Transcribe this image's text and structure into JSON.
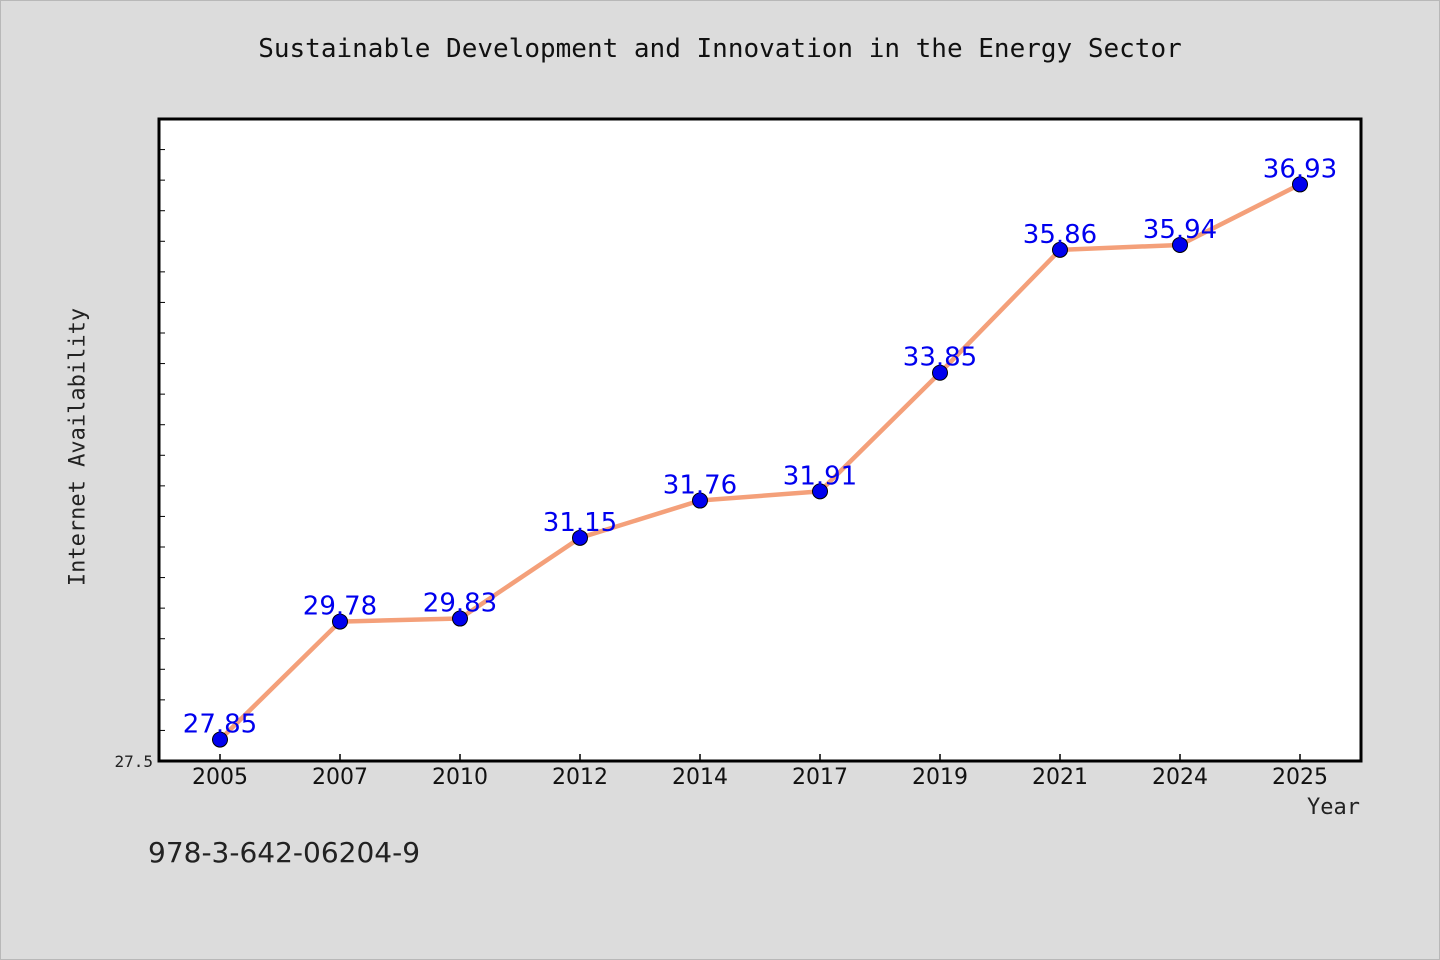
{
  "chart_data": {
    "type": "line",
    "title": "Sustainable Development and Innovation in the Energy Sector",
    "xlabel": "Year",
    "ylabel": "Internet Availability",
    "categories": [
      "2005",
      "2007",
      "2010",
      "2012",
      "2014",
      "2017",
      "2019",
      "2021",
      "2024",
      "2025"
    ],
    "series": [
      {
        "values": [
          27.85,
          29.78,
          29.83,
          31.15,
          31.76,
          31.91,
          33.85,
          35.86,
          35.94,
          36.93
        ],
        "line_color": "#f4a07a",
        "marker_color": "#0000ee",
        "label_color": "#0000ee"
      }
    ],
    "ylim": [
      27.5,
      38.0
    ],
    "y_tick_labels": [
      "27.5"
    ],
    "grid": false,
    "legend": "none"
  },
  "footer": {
    "isbn": "978-3-642-06204-9"
  }
}
